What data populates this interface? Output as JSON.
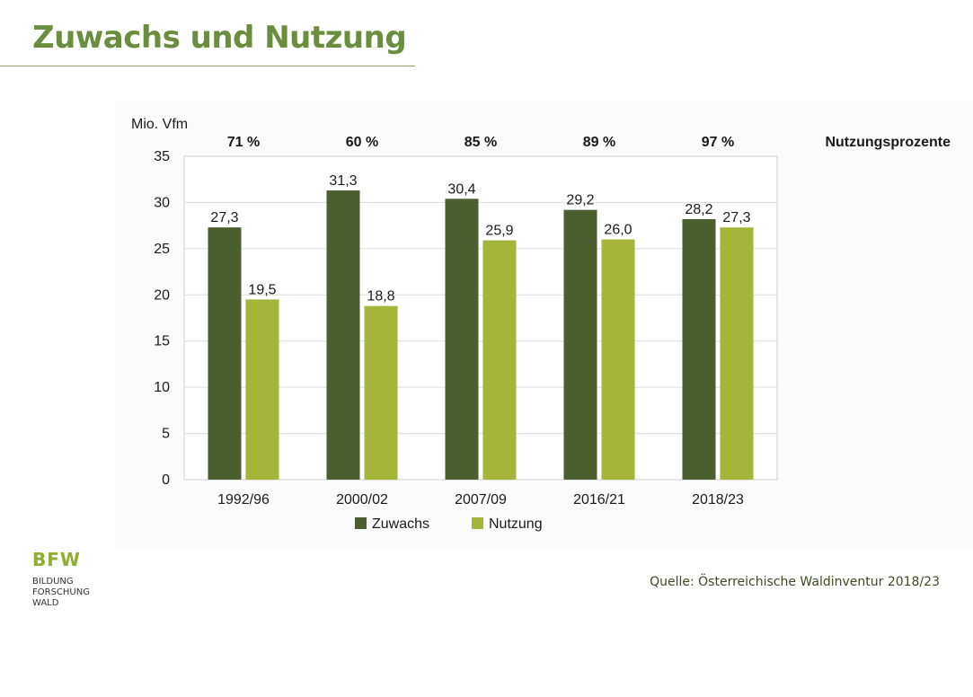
{
  "page": {
    "title": "Zuwachs und Nutzung",
    "source": "Quelle: Österreichische Waldinventur 2018/23"
  },
  "logo": {
    "mark": "BFW",
    "lines": [
      "BILDUNG",
      "FORSCHUNG",
      "WALD"
    ]
  },
  "colors": {
    "title": "#6b8e3e",
    "zuwachs": "#4b5e2e",
    "nutzung": "#a4b53a"
  },
  "chart_data": {
    "type": "bar",
    "ylabel": "Mio. Vfm",
    "ylim": [
      0,
      35
    ],
    "yticks": [
      0,
      5,
      10,
      15,
      20,
      25,
      30,
      35
    ],
    "grid": true,
    "legend_position": "bottom",
    "categories": [
      "1992/96",
      "2000/02",
      "2007/09",
      "2016/21",
      "2018/23"
    ],
    "series": [
      {
        "name": "Zuwachs",
        "values": [
          27.3,
          31.3,
          30.4,
          29.2,
          28.2
        ],
        "labels": [
          "27,3",
          "31,3",
          "30,4",
          "29,2",
          "28,2"
        ]
      },
      {
        "name": "Nutzung",
        "values": [
          19.5,
          18.8,
          25.9,
          26.0,
          27.3
        ],
        "labels": [
          "19,5",
          "18,8",
          "25,9",
          "26,0",
          "27,3"
        ]
      }
    ],
    "percent_row": {
      "label": "Nutzungsprozente",
      "values": [
        "71 %",
        "60 %",
        "85 %",
        "89 %",
        "97 %"
      ]
    }
  }
}
